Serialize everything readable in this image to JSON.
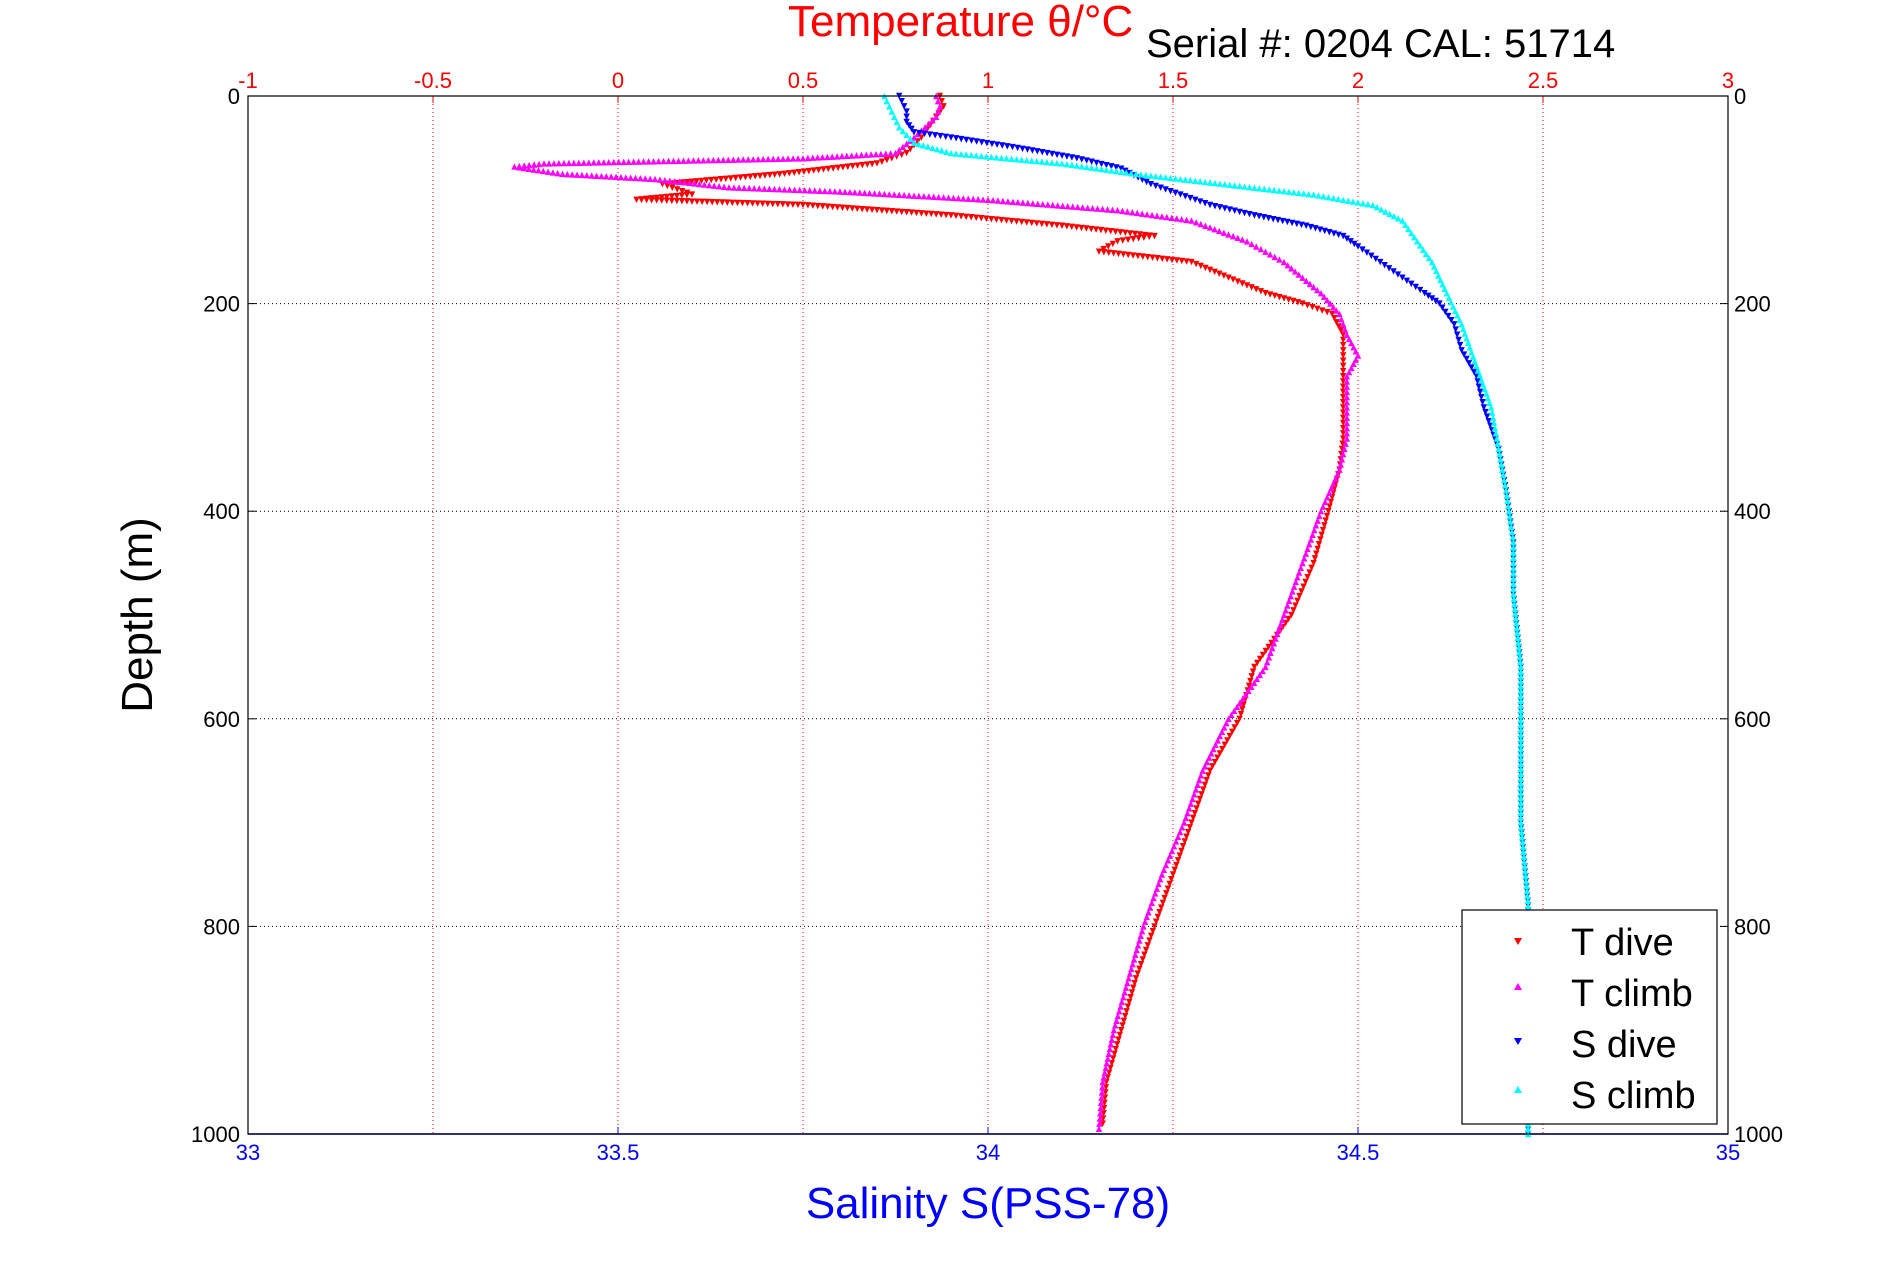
{
  "chart_data": {
    "type": "scatter",
    "title": "Temperature θ/°C",
    "subtitle": "Serial #: 0204   CAL: 51714",
    "xlabel": "Salinity S(PSS-78)",
    "ylabel": "Depth (m)",
    "x_top_label": "Temperature θ/°C",
    "x_bottom": {
      "range": [
        33,
        35
      ],
      "ticks": [
        "33",
        "33.5",
        "34",
        "34.5",
        "35"
      ],
      "color": "#0000ff"
    },
    "x_top": {
      "range": [
        -1,
        3
      ],
      "ticks": [
        "-1",
        "-0.5",
        "0",
        "0.5",
        "1",
        "1.5",
        "2",
        "2.5",
        "3"
      ],
      "color": "#ff0000"
    },
    "y": {
      "range": [
        0,
        1000
      ],
      "reversed": true,
      "ticks": [
        "0",
        "200",
        "400",
        "600",
        "800",
        "1000"
      ]
    },
    "grid": true,
    "legend_position": "bottom-right",
    "series": [
      {
        "name": "T dive",
        "axis": "temperature",
        "color": "#ff0000",
        "marker": "triangle-down",
        "points": [
          [
            0.87,
            0
          ],
          [
            0.88,
            10
          ],
          [
            0.86,
            20
          ],
          [
            0.82,
            40
          ],
          [
            0.78,
            55
          ],
          [
            0.7,
            65
          ],
          [
            0.45,
            75
          ],
          [
            0.12,
            85
          ],
          [
            0.2,
            95
          ],
          [
            0.05,
            100
          ],
          [
            0.5,
            105
          ],
          [
            0.9,
            115
          ],
          [
            1.2,
            125
          ],
          [
            1.45,
            135
          ],
          [
            1.35,
            140
          ],
          [
            1.3,
            150
          ],
          [
            1.55,
            160
          ],
          [
            1.65,
            175
          ],
          [
            1.75,
            190
          ],
          [
            1.85,
            200
          ],
          [
            1.93,
            210
          ],
          [
            1.96,
            230
          ],
          [
            1.96,
            260
          ],
          [
            1.96,
            290
          ],
          [
            1.96,
            330
          ],
          [
            1.95,
            360
          ],
          [
            1.92,
            400
          ],
          [
            1.88,
            450
          ],
          [
            1.82,
            500
          ],
          [
            1.72,
            550
          ],
          [
            1.68,
            600
          ],
          [
            1.6,
            650
          ],
          [
            1.55,
            700
          ],
          [
            1.5,
            750
          ],
          [
            1.45,
            800
          ],
          [
            1.4,
            850
          ],
          [
            1.36,
            900
          ],
          [
            1.32,
            950
          ],
          [
            1.31,
            990
          ]
        ]
      },
      {
        "name": "T climb",
        "axis": "temperature",
        "color": "#ff00ff",
        "marker": "triangle-up",
        "points": [
          [
            0.86,
            0
          ],
          [
            0.87,
            10
          ],
          [
            0.86,
            20
          ],
          [
            0.8,
            40
          ],
          [
            0.75,
            55
          ],
          [
            0.5,
            60
          ],
          [
            -0.2,
            65
          ],
          [
            -0.28,
            68
          ],
          [
            -0.15,
            75
          ],
          [
            0.1,
            80
          ],
          [
            0.3,
            88
          ],
          [
            0.6,
            92
          ],
          [
            1.0,
            100
          ],
          [
            1.35,
            110
          ],
          [
            1.55,
            120
          ],
          [
            1.7,
            140
          ],
          [
            1.8,
            160
          ],
          [
            1.85,
            175
          ],
          [
            1.9,
            190
          ],
          [
            1.95,
            210
          ],
          [
            1.97,
            230
          ],
          [
            2.0,
            250
          ],
          [
            1.97,
            270
          ],
          [
            1.97,
            300
          ],
          [
            1.97,
            330
          ],
          [
            1.95,
            360
          ],
          [
            1.9,
            400
          ],
          [
            1.85,
            450
          ],
          [
            1.8,
            500
          ],
          [
            1.75,
            550
          ],
          [
            1.65,
            600
          ],
          [
            1.58,
            650
          ],
          [
            1.53,
            700
          ],
          [
            1.47,
            750
          ],
          [
            1.42,
            800
          ],
          [
            1.38,
            850
          ],
          [
            1.34,
            900
          ],
          [
            1.31,
            950
          ],
          [
            1.3,
            995
          ]
        ]
      },
      {
        "name": "S dive",
        "axis": "salinity",
        "color": "#0000ff",
        "marker": "triangle-down",
        "points": [
          [
            33.88,
            0
          ],
          [
            33.89,
            15
          ],
          [
            33.89,
            25
          ],
          [
            33.9,
            35
          ],
          [
            33.95,
            40
          ],
          [
            34.04,
            50
          ],
          [
            34.12,
            60
          ],
          [
            34.18,
            70
          ],
          [
            34.22,
            85
          ],
          [
            34.26,
            95
          ],
          [
            34.3,
            105
          ],
          [
            34.36,
            115
          ],
          [
            34.43,
            125
          ],
          [
            34.48,
            135
          ],
          [
            34.5,
            145
          ],
          [
            34.53,
            160
          ],
          [
            34.56,
            175
          ],
          [
            34.59,
            190
          ],
          [
            34.61,
            200
          ],
          [
            34.63,
            220
          ],
          [
            34.64,
            245
          ],
          [
            34.66,
            270
          ],
          [
            34.67,
            300
          ],
          [
            34.69,
            340
          ],
          [
            34.7,
            380
          ],
          [
            34.71,
            430
          ],
          [
            34.71,
            480
          ],
          [
            34.72,
            550
          ],
          [
            34.72,
            620
          ],
          [
            34.72,
            700
          ],
          [
            34.73,
            780
          ],
          [
            34.73,
            850
          ],
          [
            34.73,
            920
          ],
          [
            34.73,
            1000
          ]
        ]
      },
      {
        "name": "S climb",
        "axis": "salinity",
        "color": "#00ffff",
        "marker": "triangle-up",
        "points": [
          [
            33.86,
            0
          ],
          [
            33.87,
            15
          ],
          [
            33.88,
            30
          ],
          [
            33.9,
            45
          ],
          [
            33.95,
            55
          ],
          [
            34.1,
            65
          ],
          [
            34.2,
            75
          ],
          [
            34.32,
            85
          ],
          [
            34.44,
            95
          ],
          [
            34.52,
            105
          ],
          [
            34.56,
            120
          ],
          [
            34.58,
            140
          ],
          [
            34.6,
            160
          ],
          [
            34.62,
            190
          ],
          [
            34.64,
            220
          ],
          [
            34.66,
            260
          ],
          [
            34.68,
            300
          ],
          [
            34.69,
            340
          ],
          [
            34.7,
            380
          ],
          [
            34.71,
            430
          ],
          [
            34.71,
            480
          ],
          [
            34.72,
            550
          ],
          [
            34.72,
            620
          ],
          [
            34.72,
            700
          ],
          [
            34.73,
            780
          ],
          [
            34.73,
            850
          ],
          [
            34.73,
            920
          ],
          [
            34.73,
            1000
          ]
        ]
      }
    ]
  }
}
